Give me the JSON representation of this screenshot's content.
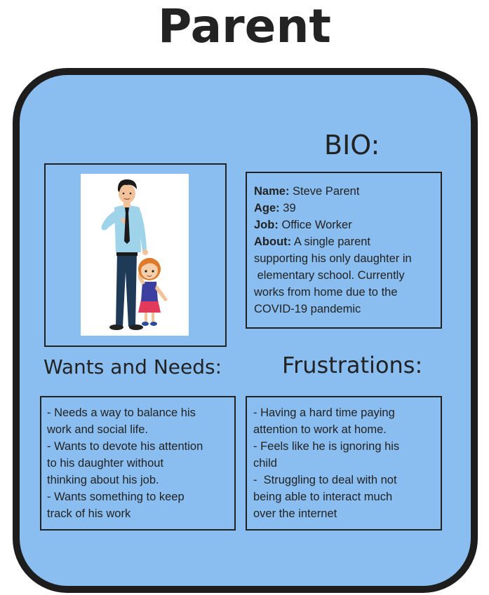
{
  "page": {
    "title": "Parent"
  },
  "bio": {
    "heading": "BIO:",
    "name_label": "Name:",
    "name_value": "Steve Parent",
    "age_label": "Age:",
    "age_value": "39",
    "job_label": "Job:",
    "job_value": "Office Worker",
    "about_label": "About:",
    "about_lines": [
      "A single parent",
      "supporting his only daughter in",
      " elementary school. Currently",
      "works from home due to the",
      "COVID-19 pandemic"
    ]
  },
  "wants": {
    "heading": "Wants and Needs:",
    "lines": [
      "- Needs a way to balance his",
      "work and social life.",
      "- Wants to devote his attention",
      "to his daughter without",
      "thinking about his job.",
      "- Wants something to keep",
      "track of his work"
    ]
  },
  "frustrations": {
    "heading": "Frustrations:",
    "lines": [
      "- Having a hard time paying",
      "attention to work at home.",
      "- Feels like he is ignoring his",
      "child",
      "-  Struggling to deal with not",
      "being able to interact much",
      "over the internet"
    ]
  },
  "colors": {
    "card_background": "#8bbef0",
    "card_border": "#1d1d1d",
    "text": "#222222"
  },
  "illustration": {
    "subject": "father-and-daughter-illustration"
  }
}
